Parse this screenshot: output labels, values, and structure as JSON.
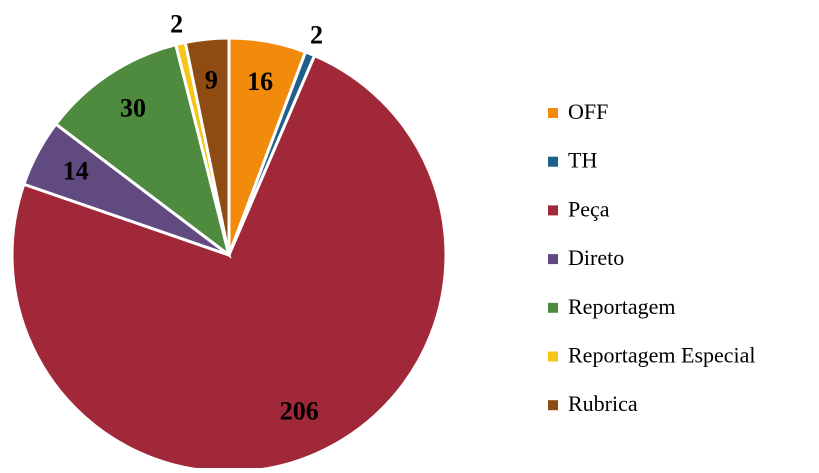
{
  "chart_data": {
    "type": "pie",
    "categories": [
      "OFF",
      "TH",
      "Peça",
      "Direto",
      "Reportagem",
      "Reportagem Especial",
      "Rubrica"
    ],
    "values": [
      16,
      2,
      206,
      14,
      30,
      2,
      9
    ],
    "colors": [
      "#f28a0c",
      "#1f5f8b",
      "#a02838",
      "#604a80",
      "#4f8b3f",
      "#f5c518",
      "#8e4b12"
    ],
    "legend": "right"
  }
}
